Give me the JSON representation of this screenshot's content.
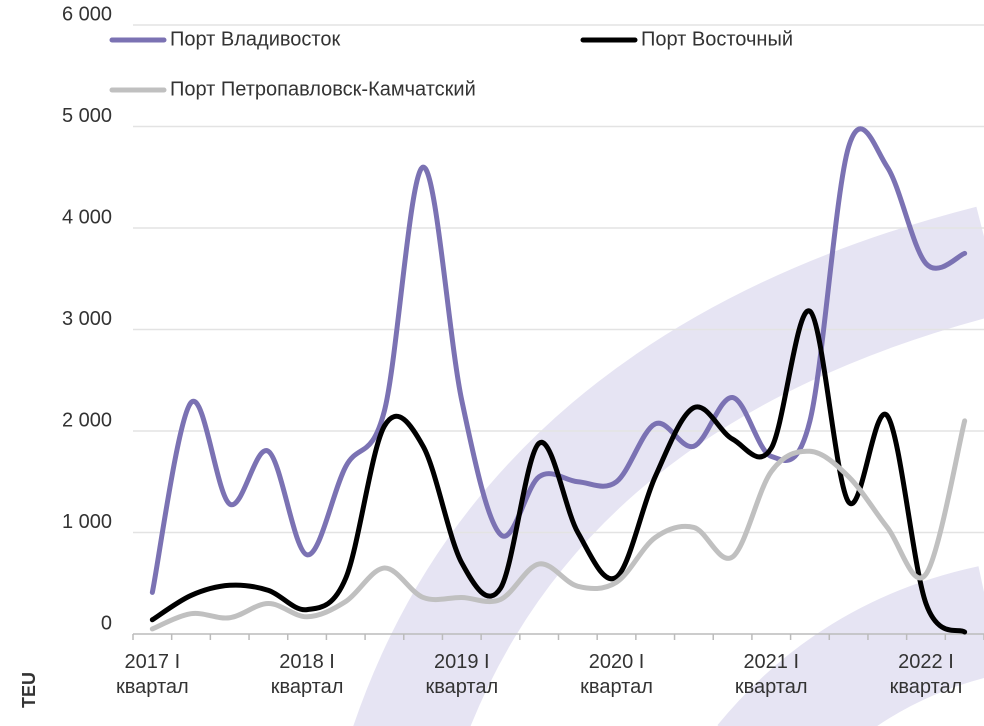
{
  "chart_data": {
    "type": "line",
    "y_label": "TEU",
    "categories": [
      "2017 I квартал",
      null,
      null,
      null,
      "2018 I квартал",
      null,
      null,
      null,
      "2019 I квартал",
      null,
      null,
      null,
      "2020 I квартал",
      null,
      null,
      null,
      "2021 I квартал",
      null,
      null,
      null,
      "2022 I квартал",
      null
    ],
    "series": [
      {
        "name": "Порт Владивосток",
        "color": "#7b72b3",
        "values": [
          410,
          2280,
          1280,
          1800,
          780,
          1650,
          2200,
          4600,
          2300,
          980,
          1550,
          1500,
          1500,
          2070,
          1850,
          2330,
          1750,
          2100,
          4800,
          4600,
          3650,
          3750
        ]
      },
      {
        "name": "Порт Восточный",
        "color": "#000000",
        "values": [
          140,
          380,
          480,
          430,
          240,
          550,
          2050,
          1850,
          700,
          450,
          1880,
          1000,
          560,
          1550,
          2230,
          1920,
          1830,
          3180,
          1300,
          2150,
          300,
          20
        ]
      },
      {
        "name": "Порт Петропавловск-Камчатский",
        "color": "#c0c0c0",
        "values": [
          50,
          200,
          160,
          300,
          170,
          320,
          650,
          360,
          360,
          340,
          690,
          470,
          510,
          950,
          1050,
          760,
          1600,
          1800,
          1550,
          1050,
          590,
          2100
        ]
      }
    ],
    "ylim": [
      0,
      6000
    ],
    "yticks": [
      0,
      {
        "value": 1000,
        "label": "1 000"
      },
      {
        "value": 2000,
        "label": "2 000"
      },
      {
        "value": 3000,
        "label": "3 000"
      },
      {
        "value": 4000,
        "label": "4 000"
      },
      {
        "value": 5000,
        "label": "5 000"
      },
      {
        "value": 6000,
        "label": "6 000"
      }
    ],
    "grid": true
  }
}
